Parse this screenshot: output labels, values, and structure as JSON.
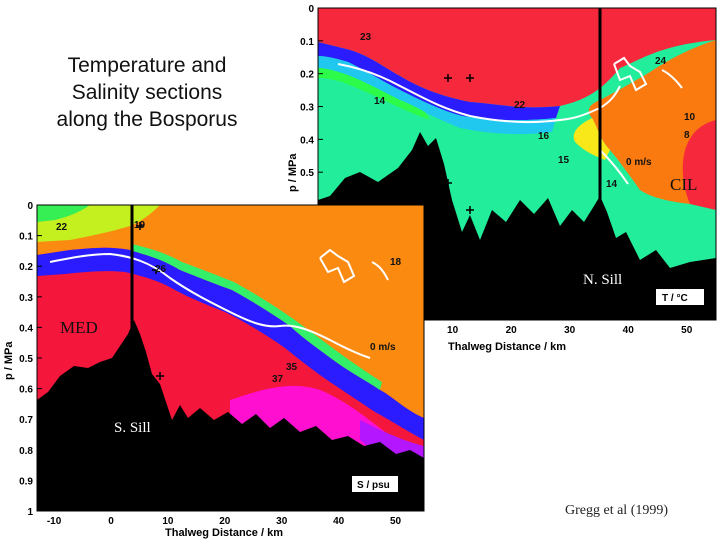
{
  "title": "Temperature and\nSalinity sections\nalong the Bosporus",
  "citation": "Gregg et al (1999)",
  "chart_data": [
    {
      "type": "heatmap",
      "variable": "Temperature",
      "unit_label": "T / °C",
      "xlabel": "Thalweg Distance / km",
      "ylabel": "p / MPa",
      "xlim": [
        -13,
        55
      ],
      "ylim": [
        0,
        1
      ],
      "x_ticks": [
        "10",
        "20",
        "30",
        "40",
        "50"
      ],
      "y_ticks": [
        "0",
        "0.1",
        "0.2",
        "0.3",
        "0.4",
        "0.5"
      ],
      "contour_labels": [
        "23",
        "24",
        "14",
        "22",
        "10",
        "8",
        "16",
        "15",
        "14"
      ],
      "velocity_contour_label": "0 m/s",
      "annotations": [
        "CIL",
        "N. Sill"
      ],
      "sill_x": 34.5,
      "colors": {
        "surface_warm": "#f5283c",
        "cold_intermediate": "#fb7a10",
        "deep": "#22ed9a",
        "interface": "#2b1cff"
      }
    },
    {
      "type": "heatmap",
      "variable": "Salinity",
      "unit_label": "S / psu",
      "xlabel": "Thalweg Distance / km",
      "ylabel": "p / MPa",
      "xlim": [
        -13,
        55
      ],
      "ylim": [
        0,
        1
      ],
      "x_ticks": [
        "-10",
        "0",
        "10",
        "20",
        "30",
        "40",
        "50"
      ],
      "y_ticks": [
        "0",
        "0.1",
        "0.2",
        "0.3",
        "0.4",
        "0.5",
        "0.6",
        "0.7",
        "0.8",
        "0.9",
        "1"
      ],
      "contour_labels": [
        "22",
        "19",
        "26",
        "18",
        "35",
        "37"
      ],
      "velocity_contour_label": "0 m/s",
      "annotations": [
        "MED",
        "S. Sill"
      ],
      "sill_x": 3,
      "colors": {
        "upper": "#fb8a10",
        "lower": "#f5163c",
        "deep": "#ff10d0",
        "interface": "#2b1cff"
      }
    }
  ]
}
